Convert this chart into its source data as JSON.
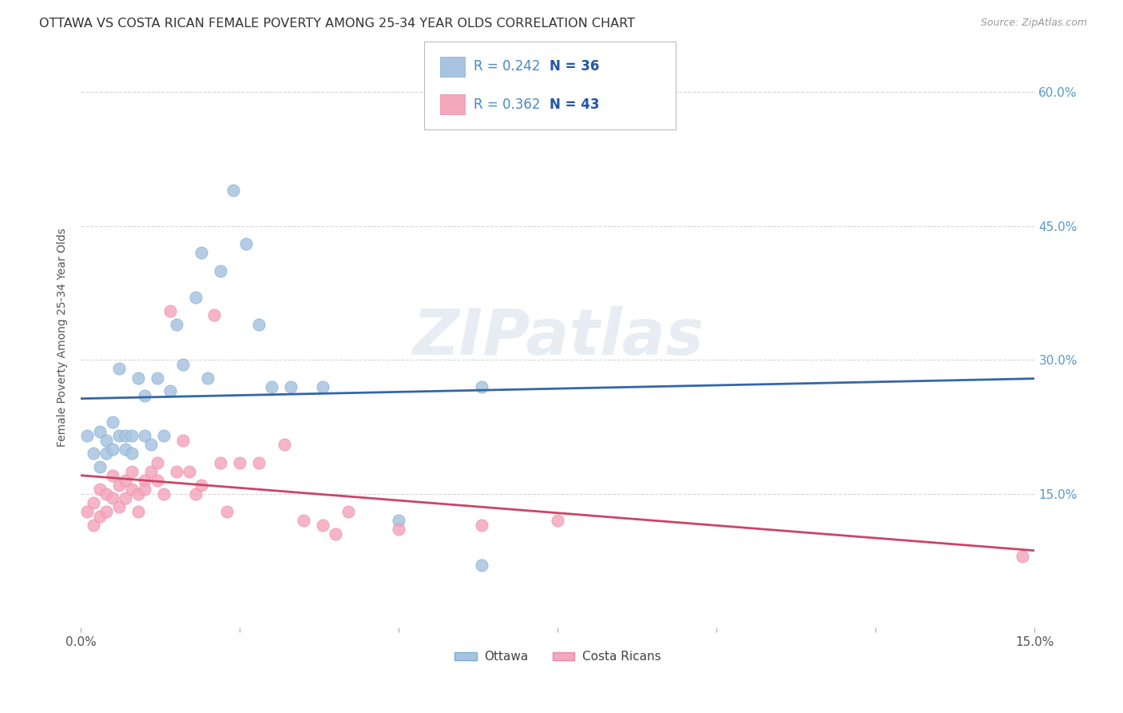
{
  "title": "OTTAWA VS COSTA RICAN FEMALE POVERTY AMONG 25-34 YEAR OLDS CORRELATION CHART",
  "source": "Source: ZipAtlas.com",
  "ylabel": "Female Poverty Among 25-34 Year Olds",
  "legend_ottawa": "Ottawa",
  "legend_costa": "Costa Ricans",
  "legend_r_ottawa": "R = 0.242",
  "legend_n_ottawa": "N = 36",
  "legend_r_costa": "R = 0.362",
  "legend_n_costa": "N = 43",
  "watermark": "ZIPatlas",
  "ottawa_color": "#a8c4e0",
  "ottawa_edge_color": "#7aadd4",
  "ottawa_line_color": "#3366aa",
  "costa_color": "#f4a8bc",
  "costa_edge_color": "#e888a8",
  "costa_line_color": "#cc4466",
  "ottawa_x": [
    0.001,
    0.002,
    0.003,
    0.003,
    0.004,
    0.004,
    0.005,
    0.005,
    0.006,
    0.006,
    0.007,
    0.007,
    0.008,
    0.008,
    0.009,
    0.01,
    0.01,
    0.011,
    0.012,
    0.013,
    0.014,
    0.015,
    0.016,
    0.018,
    0.019,
    0.02,
    0.022,
    0.024,
    0.026,
    0.028,
    0.03,
    0.033,
    0.038,
    0.05,
    0.063,
    0.063
  ],
  "ottawa_y": [
    0.215,
    0.195,
    0.22,
    0.18,
    0.21,
    0.195,
    0.23,
    0.2,
    0.29,
    0.215,
    0.2,
    0.215,
    0.195,
    0.215,
    0.28,
    0.26,
    0.215,
    0.205,
    0.28,
    0.215,
    0.265,
    0.34,
    0.295,
    0.37,
    0.42,
    0.28,
    0.4,
    0.49,
    0.43,
    0.34,
    0.27,
    0.27,
    0.27,
    0.12,
    0.27,
    0.07
  ],
  "costa_x": [
    0.001,
    0.002,
    0.002,
    0.003,
    0.003,
    0.004,
    0.004,
    0.005,
    0.005,
    0.006,
    0.006,
    0.007,
    0.007,
    0.008,
    0.008,
    0.009,
    0.009,
    0.01,
    0.01,
    0.011,
    0.012,
    0.012,
    0.013,
    0.014,
    0.015,
    0.016,
    0.017,
    0.018,
    0.019,
    0.021,
    0.022,
    0.023,
    0.025,
    0.028,
    0.032,
    0.035,
    0.038,
    0.04,
    0.042,
    0.05,
    0.063,
    0.075,
    0.148
  ],
  "costa_y": [
    0.13,
    0.14,
    0.115,
    0.155,
    0.125,
    0.15,
    0.13,
    0.145,
    0.17,
    0.16,
    0.135,
    0.165,
    0.145,
    0.155,
    0.175,
    0.15,
    0.13,
    0.165,
    0.155,
    0.175,
    0.185,
    0.165,
    0.15,
    0.355,
    0.175,
    0.21,
    0.175,
    0.15,
    0.16,
    0.35,
    0.185,
    0.13,
    0.185,
    0.185,
    0.205,
    0.12,
    0.115,
    0.105,
    0.13,
    0.11,
    0.115,
    0.12,
    0.08
  ],
  "xlim": [
    0.0,
    0.15
  ],
  "ylim": [
    0.0,
    0.65
  ],
  "xticks": [
    0.0,
    0.025,
    0.05,
    0.075,
    0.1,
    0.125,
    0.15
  ],
  "xticklabels": [
    "0.0%",
    "",
    "",
    "",
    "",
    "",
    "15.0%"
  ],
  "yticks": [
    0.0,
    0.15,
    0.3,
    0.45,
    0.6
  ],
  "yticklabels_right": [
    "",
    "15.0%",
    "30.0%",
    "45.0%",
    "60.0%"
  ],
  "background_color": "#ffffff",
  "grid_color": "#cccccc",
  "title_color": "#333333",
  "source_color": "#999999",
  "tick_label_color": "#5599cc",
  "xtick_label_color": "#555555"
}
